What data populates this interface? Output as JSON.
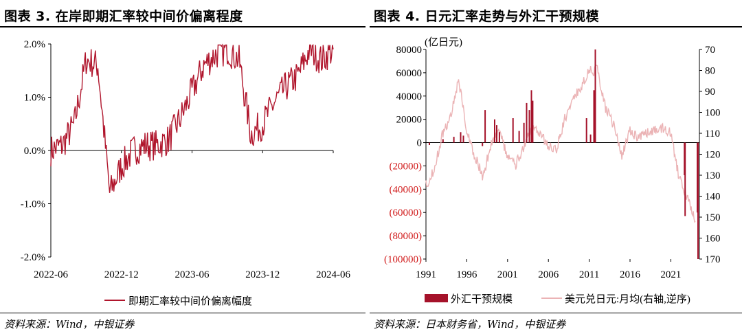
{
  "left": {
    "title": "图表 3. 在岸即期汇率较中间价偏离程度",
    "source": "资料来源：Wind，中银证券",
    "chart_data": {
      "type": "line",
      "title": "",
      "xlabel": "",
      "ylabel": "",
      "x_ticks": [
        "2022-06",
        "2022-12",
        "2023-06",
        "2023-12",
        "2024-06"
      ],
      "y_ticks": [
        "2.0%",
        "1.0%",
        "0.0%",
        "-1.0%",
        "-2.0%"
      ],
      "ylim": [
        -2.0,
        2.0
      ],
      "legend_position": "bottom",
      "series": [
        {
          "name": "即期汇率较中间价偏离幅度",
          "color": "#b0152c",
          "x": [
            "2022-06",
            "2022-07",
            "2022-08",
            "2022-09",
            "2022-10",
            "2022-11",
            "2022-12",
            "2023-01",
            "2023-02",
            "2023-03",
            "2023-04",
            "2023-05",
            "2023-06",
            "2023-07",
            "2023-08",
            "2023-09",
            "2023-10",
            "2023-11",
            "2023-12",
            "2024-01",
            "2024-02",
            "2024-03",
            "2024-04",
            "2024-05",
            "2024-06"
          ],
          "values": [
            0.0,
            0.1,
            0.5,
            1.7,
            1.6,
            -0.8,
            -0.3,
            0.0,
            0.1,
            0.1,
            0.2,
            0.6,
            1.1,
            1.6,
            1.8,
            1.9,
            1.7,
            0.3,
            0.5,
            0.9,
            1.2,
            1.4,
            1.9,
            1.7,
            1.9
          ]
        }
      ]
    }
  },
  "right": {
    "title": "图表 4. 日元汇率走势与外汇干预规模",
    "source": "资料来源：日本财务省，Wind，中银证券",
    "chart_data": {
      "type": "bar",
      "title": "",
      "y_unit_label": "(亿日元)",
      "x_ticks": [
        "1991",
        "1996",
        "2001",
        "2006",
        "2011",
        "2016",
        "2021"
      ],
      "y_left_ticks": [
        "80000",
        "60000",
        "40000",
        "20000",
        "0",
        "(20000)",
        "(40000)",
        "(60000)",
        "(80000)",
        "(100000)"
      ],
      "y_left_range": [
        -100000,
        80000
      ],
      "y_right_ticks": [
        "70",
        "80",
        "90",
        "100",
        "110",
        "120",
        "130",
        "140",
        "150",
        "160",
        "170"
      ],
      "y_right_range": [
        70,
        170
      ],
      "y_right_inverted": true,
      "legend_position": "bottom",
      "series": [
        {
          "name": "外汇干预规模",
          "type": "bar",
          "color": "#a5122a",
          "x": [
            "1991-06",
            "1993-02",
            "1994-06",
            "1995-04",
            "1995-08",
            "1997-12",
            "1998-04",
            "1999-06",
            "1999-09",
            "2000-01",
            "2001-09",
            "2002-06",
            "2003-01",
            "2003-05",
            "2003-09",
            "2003-12",
            "2004-02",
            "2010-09",
            "2011-03",
            "2011-08",
            "2011-10",
            "2022-09",
            "2022-10",
            "2024-04",
            "2024-05"
          ],
          "values": [
            -2000,
            3000,
            5000,
            9000,
            6000,
            -3000,
            28000,
            20000,
            15000,
            9000,
            21000,
            10000,
            17000,
            34000,
            28000,
            45000,
            36000,
            21000,
            7000,
            45000,
            80000,
            -28000,
            -63000,
            -60000,
            -100000
          ]
        },
        {
          "name": "美元兑日元:月均(右轴,逆序)",
          "type": "line",
          "axis": "right",
          "color": "#ebb3b5",
          "x": [
            "1991",
            "1992",
            "1993",
            "1994",
            "1995",
            "1996",
            "1997",
            "1998",
            "1999",
            "2000",
            "2001",
            "2002",
            "2003",
            "2004",
            "2005",
            "2006",
            "2007",
            "2008",
            "2009",
            "2010",
            "2011",
            "2012",
            "2013",
            "2014",
            "2015",
            "2016",
            "2017",
            "2018",
            "2019",
            "2020",
            "2021",
            "2022",
            "2023",
            "2024"
          ],
          "values": [
            135,
            127,
            111,
            102,
            84,
            109,
            121,
            131,
            114,
            108,
            122,
            125,
            116,
            108,
            110,
            116,
            118,
            103,
            94,
            88,
            80,
            80,
            98,
            106,
            121,
            109,
            112,
            110,
            109,
            107,
            110,
            131,
            141,
            152
          ]
        }
      ]
    }
  }
}
